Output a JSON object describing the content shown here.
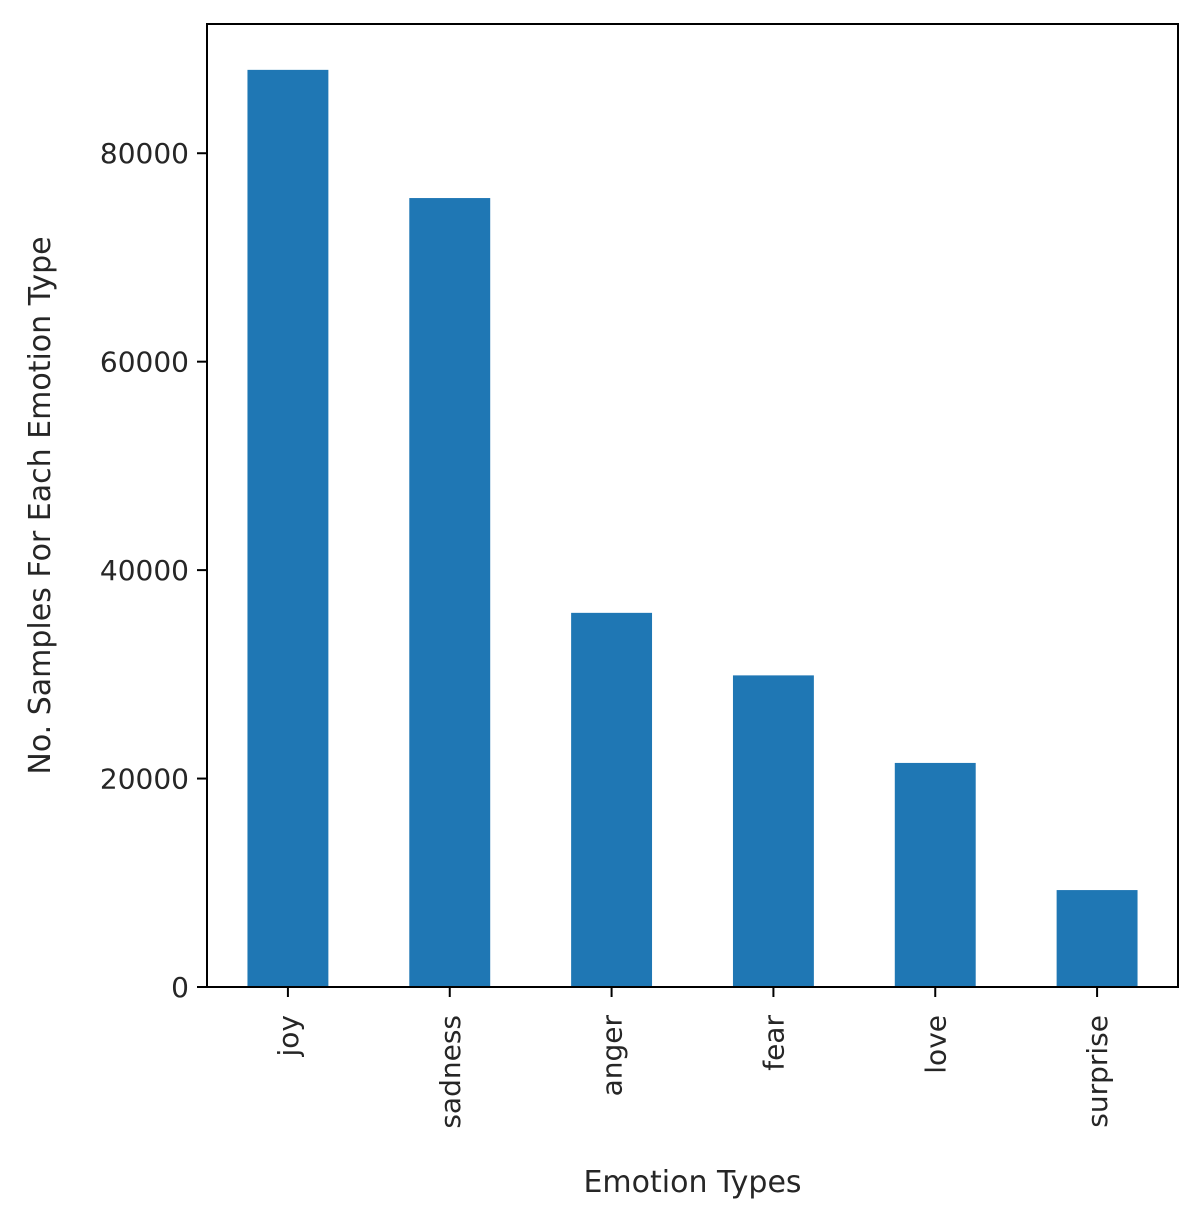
{
  "chart_data": {
    "type": "bar",
    "title": "",
    "xlabel": "Emotion Types",
    "ylabel": "No. Samples For Each Emotion Type",
    "categories": [
      "joy",
      "sadness",
      "anger",
      "fear",
      "love",
      "surprise"
    ],
    "values": [
      88000,
      75700,
      35900,
      29900,
      21500,
      9300
    ],
    "ylim": [
      0,
      92400
    ],
    "yticks": [
      0,
      20000,
      40000,
      60000,
      80000
    ],
    "ytick_labels": [
      "0",
      "20000",
      "40000",
      "60000",
      "80000"
    ],
    "grid": false,
    "legend": "none",
    "bar_color": "#1f77b4"
  }
}
